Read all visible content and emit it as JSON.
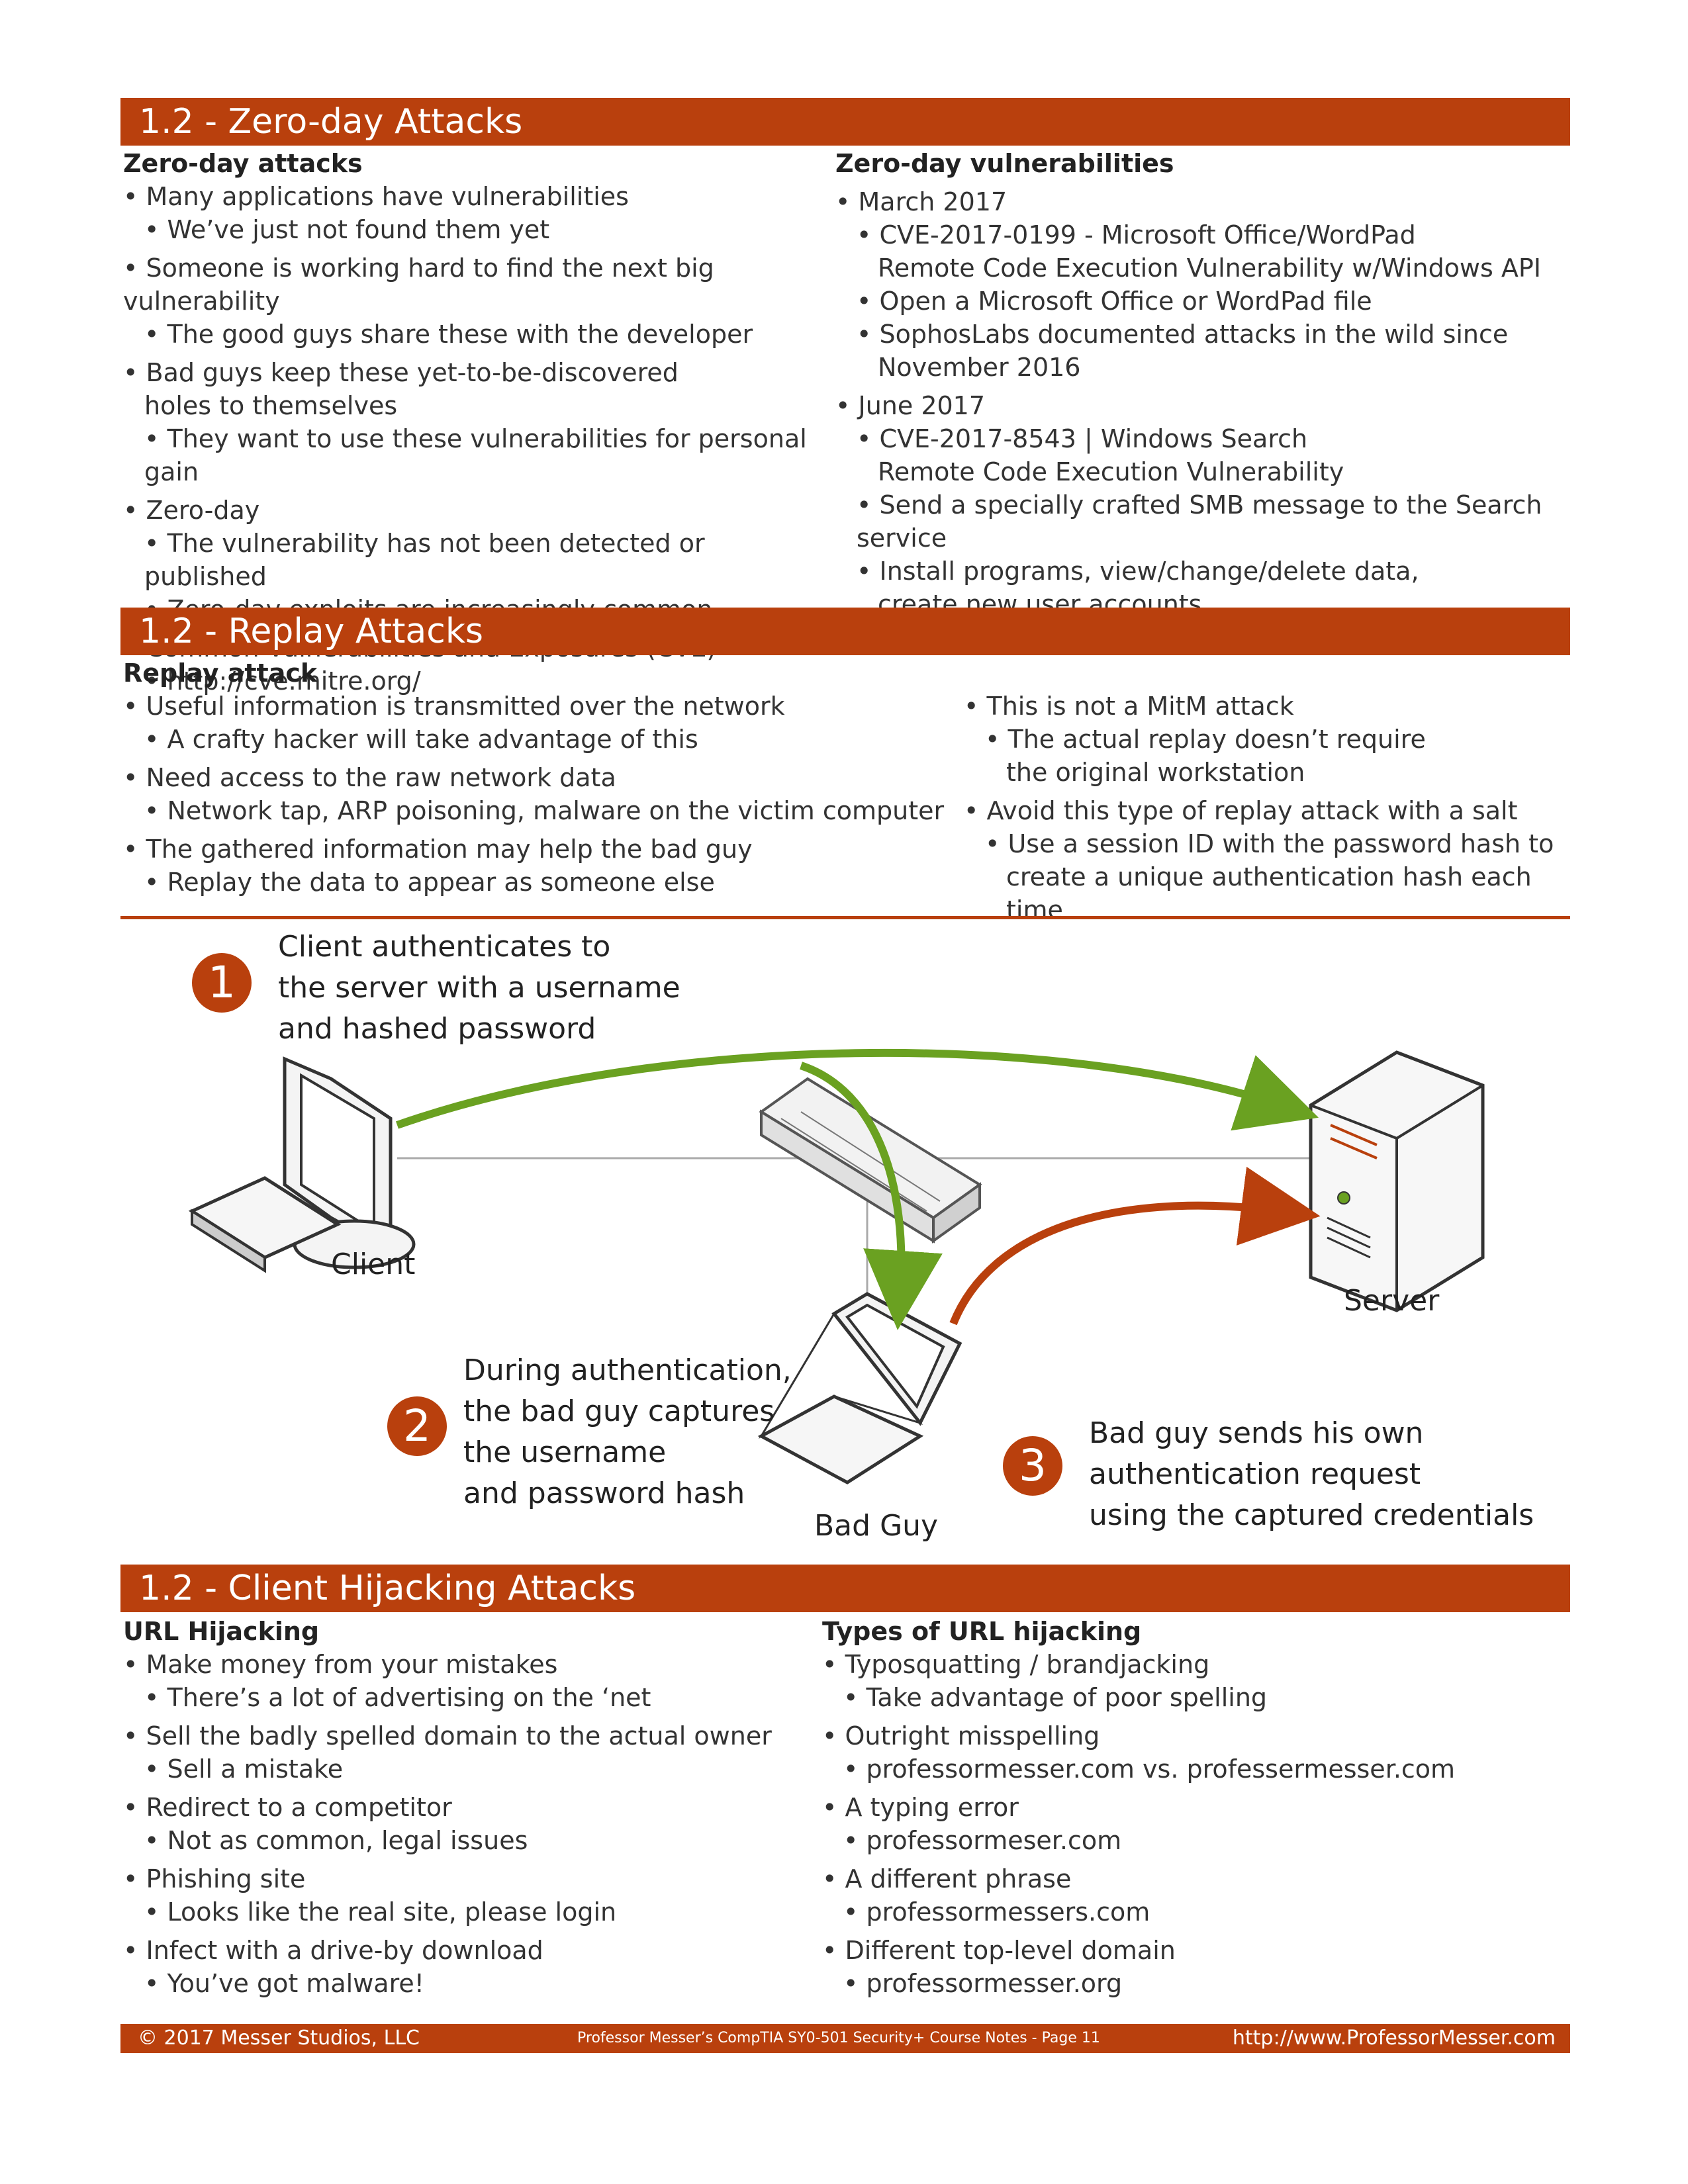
{
  "sections": {
    "zero_day_title": "1.2 - Zero-day Attacks",
    "replay_title": "1.2 - Replay Attacks",
    "hijack_title": "1.2 - Client Hijacking Attacks"
  },
  "zero_day": {
    "left_heading": "Zero-day attacks",
    "left": [
      "• Many applications have vulnerabilities",
      "• We’ve just not found them yet",
      "• Someone is working hard to find the next big vulnerability",
      "• The good guys share these with the developer",
      "• Bad guys keep these yet-to-be-discovered",
      "holes to themselves",
      "• They want to use these vulnerabilities for personal gain",
      "• Zero-day",
      "• The vulnerability has not been detected or published",
      "• Zero-day exploits are increasingly common",
      "• Common Vulnerabilities and Exposures (CVE)",
      "• http://cve.mitre.org/"
    ],
    "right_heading": "Zero-day vulnerabilities",
    "right": [
      "• March 2017",
      "• CVE-2017-0199 - Microsoft Office/WordPad",
      "Remote Code Execution Vulnerability w/Windows API",
      "• Open a Microsoft Office or WordPad file",
      "• SophosLabs documented attacks in the wild since",
      "November 2016",
      "• June 2017",
      "• CVE-2017-8543 | Windows Search",
      "Remote Code Execution Vulnerability",
      "• Send a specially crafted SMB message to the Search service",
      "• Install programs, view/change/delete data,",
      "create new user accounts"
    ]
  },
  "replay": {
    "left_heading": "Replay attack",
    "left": [
      "• Useful information is transmitted over the network",
      "• A crafty hacker will take advantage of this",
      "• Need access to the raw network data",
      "• Network tap, ARP poisoning, malware on the victim computer",
      "• The gathered information may help the bad guy",
      "• Replay the data to appear as someone else"
    ],
    "right": [
      "• This is not a MitM attack",
      "• The actual replay doesn’t require",
      "the original workstation",
      "• Avoid this type of  replay attack with a salt",
      "• Use a session ID with the password hash to",
      "create a unique authentication hash each time"
    ]
  },
  "diagram": {
    "step1_num": "1",
    "step1_text": [
      "Client authenticates to",
      "the server with a username",
      "and hashed password"
    ],
    "step2_num": "2",
    "step2_text": [
      "During authentication,",
      "the bad guy captures",
      "the username",
      "and password hash"
    ],
    "step3_num": "3",
    "step3_text": [
      "Bad guy sends his own",
      "authentication request",
      "using the captured credentials"
    ],
    "client_label": "Client",
    "server_label": "Server",
    "badguy_label": "Bad Guy"
  },
  "hijack": {
    "left_heading": "URL Hijacking",
    "left": [
      "• Make money from your mistakes",
      "• There’s a lot of advertising on the ‘net",
      "• Sell the badly spelled domain to the actual owner",
      "• Sell a mistake",
      "• Redirect to a competitor",
      "• Not as common, legal issues",
      "• Phishing site",
      "• Looks like the real site, please login",
      "• Infect with a drive-by download",
      "• You’ve got malware!"
    ],
    "right_heading": "Types of URL hijacking",
    "right": [
      "• Typosquatting / brandjacking",
      "• Take advantage of poor spelling",
      "• Outright misspelling",
      "• professormesser.com vs. professermesser.com",
      "• A typing error",
      "• professormeser.com",
      "•  A different phrase",
      "• professormessers.com",
      "• Different top-level domain",
      "• professormesser.org"
    ]
  },
  "footer": {
    "left": "© 2017 Messer Studios, LLC",
    "middle": "Professor Messer’s CompTIA SY0-501 Security+ Course Notes - Page 11",
    "right": "http://www.ProfessorMesser.com"
  },
  "colors": {
    "accent": "#b9400d",
    "green_arrow": "#6aa121",
    "red_arrow": "#b9400d"
  }
}
